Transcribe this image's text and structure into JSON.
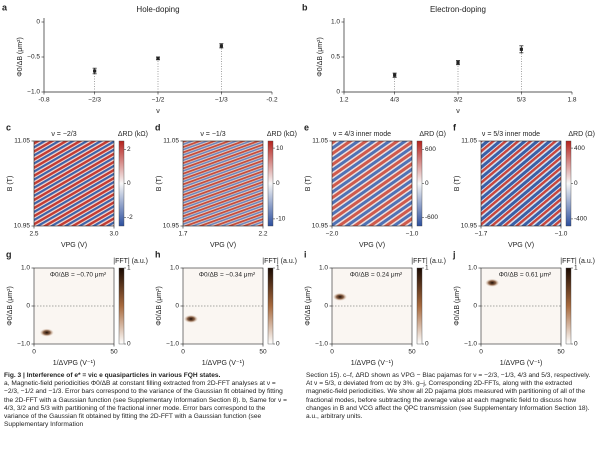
{
  "chart_data": [
    {
      "type": "scatter",
      "panel": "a",
      "title": "Hole-doping",
      "x_label": "ν",
      "y_label": "Φ0/ΔB (μm²)",
      "x": [
        -0.6667,
        -0.5,
        -0.3333
      ],
      "values": [
        -0.7,
        -0.52,
        -0.34
      ],
      "errors": [
        0.04,
        0.02,
        0.03
      ],
      "color": "#222222",
      "xlim": [
        -0.8,
        -0.2
      ],
      "xticks": [
        -0.8,
        {
          "value": -0.6667,
          "label": "−2/3"
        },
        {
          "value": -0.5,
          "label": "−1/2"
        },
        {
          "value": -0.3333,
          "label": "−1/3"
        },
        -0.2
      ],
      "ylim": [
        -1,
        0
      ],
      "yticks": [
        {
          "value": -1,
          "label": "−1.0"
        },
        {
          "value": -0.5,
          "label": "−0.5"
        },
        0
      ]
    },
    {
      "type": "scatter",
      "panel": "b",
      "title": "Electron-doping",
      "x_label": "ν",
      "y_label": "Φ0/ΔB (μm²)",
      "x": [
        1.3333,
        1.5,
        1.6667
      ],
      "values": [
        0.24,
        0.42,
        0.61
      ],
      "errors": [
        0.03,
        0.03,
        0.05
      ],
      "color": "#222222",
      "xlim": [
        1.2,
        1.8
      ],
      "xticks": [
        1.2,
        {
          "value": 1.3333,
          "label": "4/3"
        },
        {
          "value": 1.5,
          "label": "3/2"
        },
        {
          "value": 1.6667,
          "label": "5/3"
        },
        1.8
      ],
      "ylim": [
        0,
        1
      ],
      "yticks": [
        0,
        0.5,
        {
          "value": 1,
          "label": "1.0"
        }
      ]
    },
    {
      "type": "heatmap",
      "panel": "c",
      "title": "ν = −2/3",
      "x_label": "VPG (V)",
      "y_label": "B (T)",
      "colorbar_label": "ΔRD (kΩ)",
      "xlim": [
        2.5,
        3.0
      ],
      "xticks": [
        2.5,
        {
          "value": 3,
          "label": "3.0"
        }
      ],
      "ylim": [
        10.95,
        11.05
      ],
      "yticks": [
        10.95,
        11.05
      ],
      "colorbar_lim": [
        -2.5,
        2.5
      ],
      "colorbar_ticks": [
        -2,
        0,
        2
      ]
    },
    {
      "type": "heatmap",
      "panel": "d",
      "title": "ν = −1/3",
      "x_label": "VPG (V)",
      "y_label": "B (T)",
      "colorbar_label": "ΔRD (kΩ)",
      "xlim": [
        1.7,
        2.2
      ],
      "xticks": [
        1.7,
        2.2
      ],
      "ylim": [
        10.95,
        11.05
      ],
      "yticks": [
        10.95,
        11.05
      ],
      "colorbar_lim": [
        -12,
        12
      ],
      "colorbar_ticks": [
        -10,
        0,
        10
      ]
    },
    {
      "type": "heatmap",
      "panel": "e",
      "title": "ν = 4/3 inner mode",
      "x_label": "VPG (V)",
      "y_label": "B (T)",
      "colorbar_label": "ΔRD (Ω)",
      "xlim": [
        -2.0,
        -1.0
      ],
      "xticks": [
        {
          "value": -2,
          "label": "−2.0"
        },
        {
          "value": -1,
          "label": "−1.0"
        }
      ],
      "ylim": [
        10.95,
        11.05
      ],
      "yticks": [
        10.95,
        11.05
      ],
      "colorbar_lim": [
        -750,
        750
      ],
      "colorbar_ticks": [
        -600,
        0,
        600
      ]
    },
    {
      "type": "heatmap",
      "panel": "f",
      "title": "ν = 5/3 inner mode",
      "x_label": "VPG (V)",
      "y_label": "B (T)",
      "colorbar_label": "ΔRD (Ω)",
      "xlim": [
        -1.7,
        -1.0
      ],
      "xticks": [
        {
          "value": -1.7,
          "label": "−1.7"
        },
        {
          "value": -1,
          "label": "−1.0"
        }
      ],
      "ylim": [
        10.95,
        11.05
      ],
      "yticks": [
        10.95,
        11.05
      ],
      "colorbar_lim": [
        -480,
        480
      ],
      "colorbar_ticks": [
        -400,
        0,
        400
      ]
    },
    {
      "type": "fft",
      "panel": "g",
      "annotation": "Φ0/ΔB = −0.70 μm²",
      "x_label": "1/ΔVPG (V⁻¹)",
      "y_label": "Φ0/ΔB (μm²)",
      "colorbar_label": "|FFT| (a.u.)",
      "xlim": [
        0,
        50
      ],
      "xticks": [
        0,
        50
      ],
      "ylim": [
        -1,
        1
      ],
      "yticks": [
        {
          "value": -1,
          "label": "−1.0"
        },
        0,
        {
          "value": 1,
          "label": "1.0"
        }
      ],
      "colorbar_lim": [
        0,
        1
      ],
      "colorbar_ticks": [
        0,
        1
      ],
      "peak_x": 8,
      "peak_y": -0.7
    },
    {
      "type": "fft",
      "panel": "h",
      "annotation": "Φ0/ΔB = −0.34 μm²",
      "x_label": "1/ΔVPG (V⁻¹)",
      "y_label": "Φ0/ΔB (μm²)",
      "colorbar_label": "|FFT| (a.u.)",
      "xlim": [
        0,
        50
      ],
      "xticks": [
        0,
        50
      ],
      "ylim": [
        -1,
        1
      ],
      "yticks": [
        {
          "value": -1,
          "label": "−1.0"
        },
        0,
        {
          "value": 1,
          "label": "1.0"
        }
      ],
      "colorbar_lim": [
        0,
        1
      ],
      "colorbar_ticks": [
        0,
        1
      ],
      "peak_x": 5,
      "peak_y": -0.34
    },
    {
      "type": "fft",
      "panel": "i",
      "annotation": "Φ0/ΔB = 0.24 μm²",
      "x_label": "1/ΔVPG (V⁻¹)",
      "y_label": "Φ0/ΔB (μm²)",
      "colorbar_label": "|FFT| (a.u.)",
      "xlim": [
        0,
        50
      ],
      "xticks": [
        0,
        50
      ],
      "ylim": [
        -1,
        1
      ],
      "yticks": [
        {
          "value": -1,
          "label": "−1.0"
        },
        0,
        {
          "value": 1,
          "label": "1.0"
        }
      ],
      "colorbar_lim": [
        0,
        1
      ],
      "colorbar_ticks": [
        0,
        1
      ],
      "peak_x": 5,
      "peak_y": 0.24
    },
    {
      "type": "fft",
      "panel": "j",
      "annotation": "Φ0/ΔB = 0.61 μm²",
      "x_label": "1/ΔVPG (V⁻¹)",
      "y_label": "Φ0/ΔB (μm²)",
      "colorbar_label": "|FFT| (a.u.)",
      "xlim": [
        0,
        50
      ],
      "xticks": [
        0,
        50
      ],
      "ylim": [
        -1,
        1
      ],
      "yticks": [
        {
          "value": -1,
          "label": "−1.0"
        },
        0,
        {
          "value": 1,
          "label": "1.0"
        }
      ],
      "colorbar_lim": [
        0,
        1
      ],
      "colorbar_ticks": [
        0,
        1
      ],
      "peak_x": 7,
      "peak_y": 0.61
    }
  ],
  "caption": {
    "heading": "Fig. 3 | Interference of e* = νic e quasiparticles in various FQH states.",
    "column1": "a, Magnetic-field periodicities Φ0/ΔB at constant filling extracted from 2D-FFT analyses at ν = −2/3, −1/2 and −1/3. Error bars correspond to the variance of the Gaussian fit obtained by fitting the 2D-FFT with a Gaussian function (see Supplementary Information Section 8). b, Same for ν = 4/3, 3/2 and 5/3 with partitioning of the fractional inner mode. Error bars correspond to the variance of the Gaussian fit obtained by fitting the 2D-FFT with a Gaussian function (see Supplementary Information",
    "column2": "Section 15). c–f, ΔRD shown as VPG − Blac pajamas for ν = −2/3, −1/3, 4/3 and 5/3, respectively. At ν = 5/3, α deviated from αc by 3%. g–j, Corresponding 2D-FFTs, along with the extracted magnetic-field periodicities. We show all 2D pajama plots measured with partitioning of all of the fractional modes, before subtracting the average value at each magnetic field to discuss how changes in B and VCG affect the QPC transmission (see Supplementary Information Section 18). a.u., arbitrary units."
  }
}
